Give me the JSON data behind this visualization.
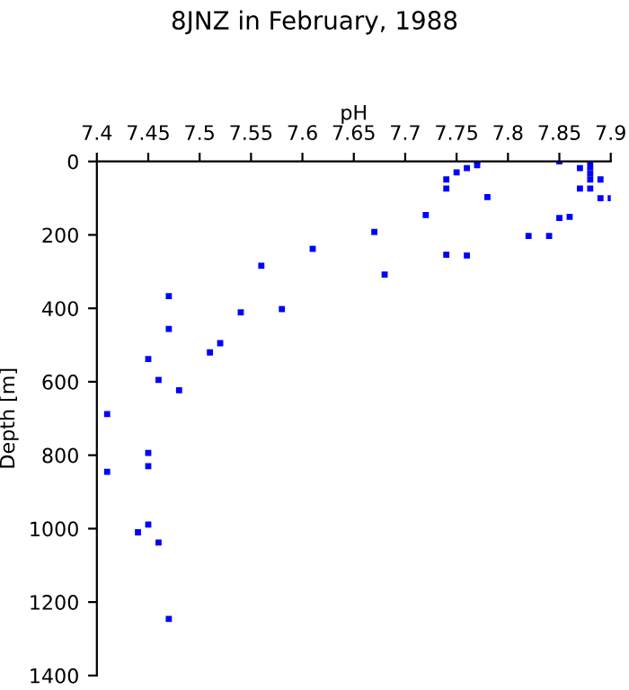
{
  "chart_data": {
    "type": "scatter",
    "title": "8JNZ in February, 1988",
    "xlabel": "pH",
    "ylabel": "Depth [m]",
    "xlim": [
      7.4,
      7.9
    ],
    "xticks": [
      7.4,
      7.45,
      7.5,
      7.55,
      7.6,
      7.65,
      7.7,
      7.75,
      7.8,
      7.85,
      7.9
    ],
    "ylim": [
      1400,
      0
    ],
    "yticks": [
      0,
      200,
      400,
      600,
      800,
      1000,
      1200,
      1400
    ],
    "marker": "square",
    "series": [
      {
        "color": "#0000ff",
        "x": [
          7.45,
          7.46,
          7.48,
          7.47,
          7.47,
          7.51,
          7.52,
          7.54,
          7.56,
          7.58,
          7.61,
          7.67,
          7.68,
          7.72,
          7.74,
          7.74,
          7.74,
          7.75,
          7.76,
          7.76,
          7.77,
          7.77,
          7.78,
          7.82,
          7.84,
          7.85,
          7.86,
          7.85,
          7.87,
          7.87,
          7.88,
          7.88,
          7.88,
          7.88,
          7.88,
          7.89,
          7.89,
          7.9,
          7.41,
          7.41,
          7.45,
          7.45,
          7.45,
          7.44,
          7.46,
          7.47
        ],
        "values": [
          538,
          595,
          623,
          367,
          456,
          520,
          495,
          411,
          284,
          402,
          238,
          192,
          308,
          146,
          49,
          74,
          254,
          30,
          18,
          256,
          0,
          10,
          97,
          203,
          203,
          154,
          151,
          0,
          18,
          74,
          0,
          16,
          33,
          49,
          74,
          49,
          100,
          100,
          688,
          845,
          794,
          830,
          989,
          1010,
          1038,
          1246
        ]
      }
    ]
  }
}
